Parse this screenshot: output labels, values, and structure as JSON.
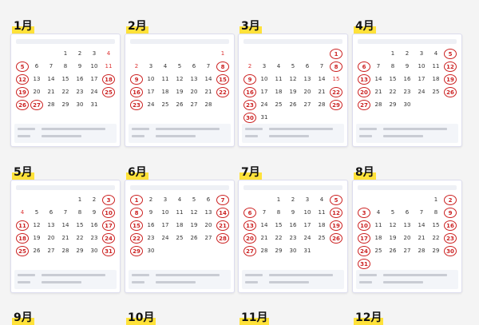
{
  "day_numbers": [
    1,
    2,
    3,
    4,
    5,
    6,
    7,
    8,
    9,
    10,
    11,
    12,
    13,
    14,
    15,
    16,
    17,
    18,
    19,
    20,
    21,
    22,
    23,
    24,
    25,
    26,
    27,
    28,
    29,
    30,
    31
  ],
  "months": [
    {
      "label": "1月",
      "first_weekday": 3,
      "days": 31,
      "circled": [
        5,
        12,
        18,
        19,
        25,
        26,
        27
      ]
    },
    {
      "label": "2月",
      "first_weekday": 6,
      "days": 28,
      "circled": [
        8,
        9,
        15,
        16,
        22,
        23
      ]
    },
    {
      "label": "3月",
      "first_weekday": 6,
      "days": 31,
      "circled": [
        1,
        8,
        9,
        16,
        22,
        23,
        29,
        30
      ]
    },
    {
      "label": "4月",
      "first_weekday": 2,
      "days": 30,
      "circled": [
        5,
        6,
        12,
        13,
        19,
        20,
        26,
        27
      ]
    },
    {
      "label": "5月",
      "first_weekday": 4,
      "days": 31,
      "circled": [
        3,
        10,
        11,
        17,
        18,
        24,
        25,
        31
      ]
    },
    {
      "label": "6月",
      "first_weekday": 0,
      "days": 30,
      "circled": [
        1,
        7,
        8,
        14,
        15,
        21,
        22,
        28,
        29
      ]
    },
    {
      "label": "7月",
      "first_weekday": 2,
      "days": 31,
      "circled": [
        5,
        6,
        12,
        13,
        19,
        20,
        26,
        27
      ]
    },
    {
      "label": "8月",
      "first_weekday": 5,
      "days": 31,
      "circled": [
        2,
        3,
        9,
        10,
        16,
        17,
        23,
        24,
        30,
        31
      ]
    },
    {
      "label": "9月"
    },
    {
      "label": "10月"
    },
    {
      "label": "11月"
    },
    {
      "label": "12月"
    }
  ]
}
